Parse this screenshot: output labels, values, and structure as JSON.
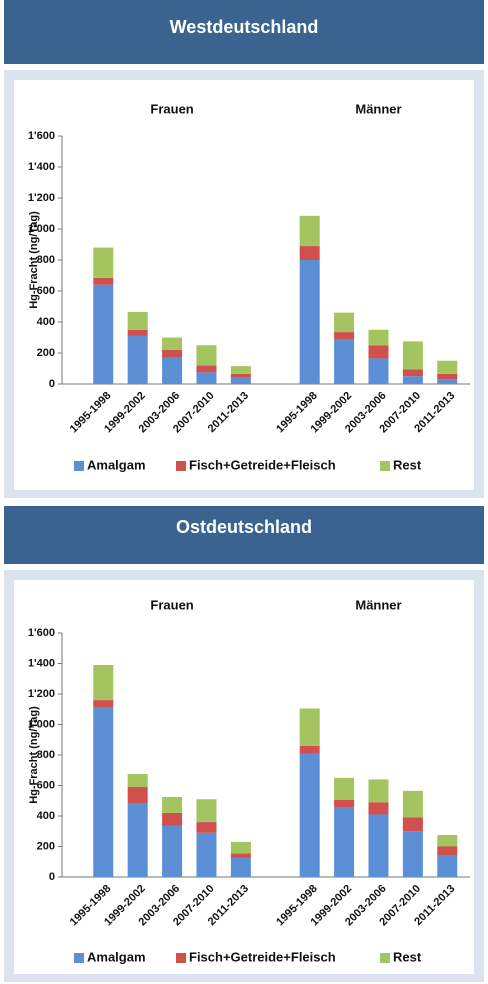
{
  "chart_data": [
    {
      "type": "bar",
      "stacked": true,
      "title": "Westdeutschland",
      "y_label": "Hg-Fracht (ng/Tag)",
      "groups": [
        {
          "name": "Frauen",
          "categories": [
            "1995-1998",
            "1999-2002",
            "2003-2006",
            "2007-2010",
            "2011-2013"
          ]
        },
        {
          "name": "Männer",
          "categories": [
            "1995-1998",
            "1999-2002",
            "2003-2006",
            "2007-2010",
            "2011-2013"
          ]
        }
      ],
      "ylim": [
        0,
        1600
      ],
      "yticks": [
        0,
        200,
        400,
        600,
        800,
        {
          "value": 1000,
          "label": "1'000"
        },
        {
          "value": 1200,
          "label": "1'200"
        },
        {
          "value": 1400,
          "label": "1'400"
        },
        {
          "value": 1600,
          "label": "1'600"
        }
      ],
      "series": [
        {
          "name": "Amalgam",
          "color": "#5b8fd6",
          "values": [
            640,
            310,
            170,
            75,
            40,
            800,
            285,
            165,
            50,
            30
          ]
        },
        {
          "name": "Fisch+Getreide+Fleisch",
          "color": "#d0504d",
          "values": [
            45,
            40,
            50,
            45,
            25,
            90,
            50,
            85,
            45,
            35
          ]
        },
        {
          "name": "Rest",
          "color": "#a3c45f",
          "values": [
            195,
            115,
            80,
            130,
            50,
            195,
            125,
            100,
            180,
            85
          ]
        }
      ]
    },
    {
      "type": "bar",
      "stacked": true,
      "title": "Ostdeutschland",
      "y_label": "Hg-Fracht (ng/Tag)",
      "groups": [
        {
          "name": "Frauen",
          "categories": [
            "1995-1998",
            "1999-2002",
            "2003-2006",
            "2007-2010",
            "2011-2013"
          ]
        },
        {
          "name": "Männer",
          "categories": [
            "1995-1998",
            "1999-2002",
            "2003-2006",
            "2007-2010",
            "2011-2013"
          ]
        }
      ],
      "ylim": [
        0,
        1600
      ],
      "yticks": [
        0,
        200,
        400,
        600,
        800,
        {
          "value": 1000,
          "label": "1'000"
        },
        {
          "value": 1200,
          "label": "1'200"
        },
        {
          "value": 1400,
          "label": "1'400"
        },
        {
          "value": 1600,
          "label": "1'600"
        }
      ],
      "series": [
        {
          "name": "Amalgam",
          "color": "#5b8fd6",
          "values": [
            1110,
            480,
            335,
            290,
            125,
            810,
            455,
            410,
            300,
            140
          ]
        },
        {
          "name": "Fisch+Getreide+Fleisch",
          "color": "#d0504d",
          "values": [
            50,
            110,
            85,
            70,
            30,
            50,
            50,
            80,
            90,
            60
          ]
        },
        {
          "name": "Rest",
          "color": "#a3c45f",
          "values": [
            230,
            85,
            105,
            150,
            75,
            245,
            145,
            150,
            175,
            75
          ]
        }
      ]
    }
  ]
}
